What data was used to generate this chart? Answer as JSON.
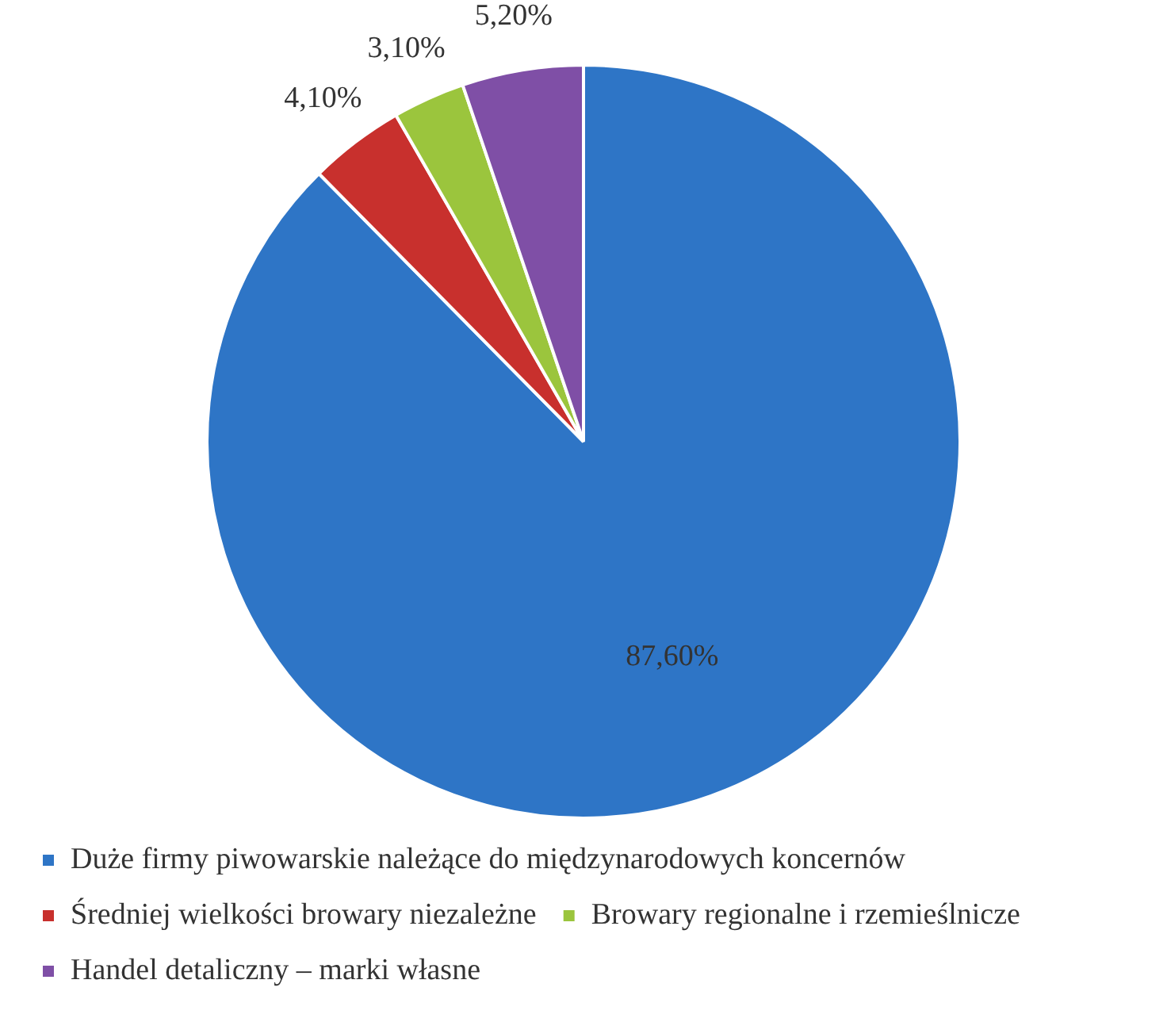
{
  "chart_data": {
    "type": "pie",
    "categories": [
      "Duże firmy piwowarskie należące do międzynarodowych koncernów",
      "Średniej wielkości browary niezależne",
      "Browary regionalne i rzemieślnicze",
      "Handel detaliczny – marki własne"
    ],
    "values": [
      87.6,
      4.1,
      3.1,
      5.2
    ],
    "colors": [
      "#2e75c6",
      "#c8302d",
      "#9bc53d",
      "#7f4fa6"
    ],
    "value_labels": [
      "87,60%",
      "4,10%",
      "3,10%",
      "5,20%"
    ],
    "legend": "bottom"
  }
}
